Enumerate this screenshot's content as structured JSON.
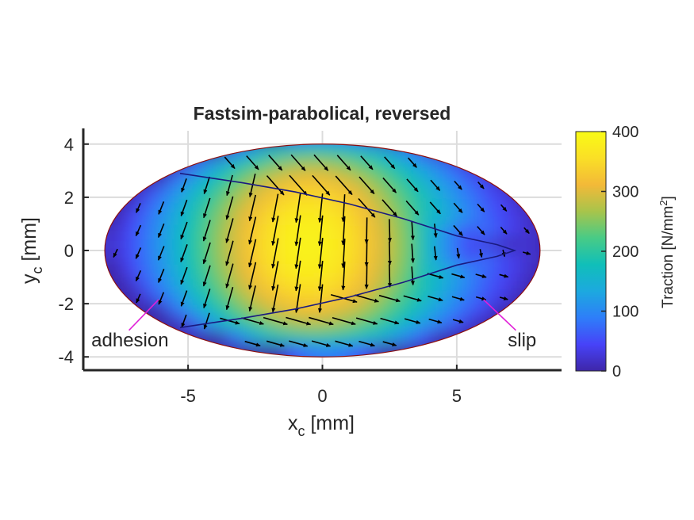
{
  "chart_data": {
    "type": "heatmap",
    "title": "Fastsim-parabolical, reversed",
    "xlabel": {
      "main": "x",
      "sub": "c",
      "unit": " [mm]"
    },
    "ylabel": {
      "main": "y",
      "sub": "c",
      "unit": " [mm]"
    },
    "xlim": [
      -8.9,
      8.9
    ],
    "ylim": [
      -4.5,
      4.5
    ],
    "xticks": [
      -5,
      0,
      5
    ],
    "yticks": [
      -4,
      -2,
      0,
      2,
      4
    ],
    "grid": true,
    "contact_ellipse": {
      "a": 8.1,
      "b": 4.0
    },
    "adhesion_slip_boundary": {
      "x": [
        -5.3,
        -3,
        -1,
        1,
        3,
        5,
        6.5,
        7.15,
        6.5,
        5,
        3,
        1,
        -1,
        -3,
        -5.3
      ],
      "y": [
        2.9,
        2.55,
        2.2,
        1.75,
        1.2,
        0.55,
        0.22,
        0,
        -0.22,
        -0.55,
        -1.2,
        -1.75,
        -2.2,
        -2.55,
        -2.9
      ]
    },
    "peak_traction": {
      "x": -1,
      "y": 0,
      "value": 390
    },
    "colorbar": {
      "label": "Traction [N/mm",
      "label_sup": "2",
      "label_end": "]",
      "min": 0,
      "max": 400,
      "ticks": [
        0,
        100,
        200,
        300,
        400
      ],
      "colormap": [
        "#3e26a8",
        "#4743f8",
        "#2e7ef9",
        "#1ca9df",
        "#10bfb9",
        "#48cb86",
        "#a8c44b",
        "#f3b938",
        "#fadf26",
        "#f9fb15"
      ]
    },
    "annotations": [
      {
        "text": "adhesion",
        "x": -8.6,
        "y": -3.6,
        "line_to": [
          -6.1,
          -1.85
        ],
        "line_from": [
          -7.2,
          -3.0
        ],
        "color": "#e020d8"
      },
      {
        "text": "slip",
        "x": 6.9,
        "y": -3.6,
        "line_to": [
          6.0,
          -1.85
        ],
        "line_from": [
          7.2,
          -3.0
        ],
        "color": "#e020d8"
      }
    ]
  }
}
